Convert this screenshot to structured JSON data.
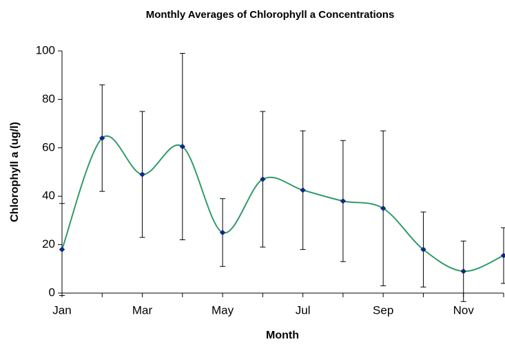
{
  "chart_data": {
    "type": "line",
    "title": "Monthly Averages of Chlorophyll a Concentrations",
    "x_label": "Month",
    "y_label": "Chlorophyll a (ug/l)",
    "categories": [
      "Jan",
      null,
      "Mar",
      null,
      "May",
      null,
      "Jul",
      null,
      "Sep",
      null,
      "Nov",
      null
    ],
    "series": [
      {
        "name": "Chlorophyll a",
        "color": "#2e9b6a",
        "marker_color": "#1a237e",
        "values": [
          18,
          64,
          49,
          60.5,
          25,
          47,
          42.5,
          38,
          35,
          18,
          9,
          15.5
        ],
        "errors": [
          19,
          22,
          26,
          38.5,
          14,
          28,
          24.5,
          25,
          32,
          15.5,
          12.5,
          11.5
        ]
      }
    ],
    "smooth": true,
    "ylim": [
      0,
      100
    ],
    "yticks": [
      0,
      20,
      40,
      60,
      80,
      100
    ],
    "grid": false
  }
}
